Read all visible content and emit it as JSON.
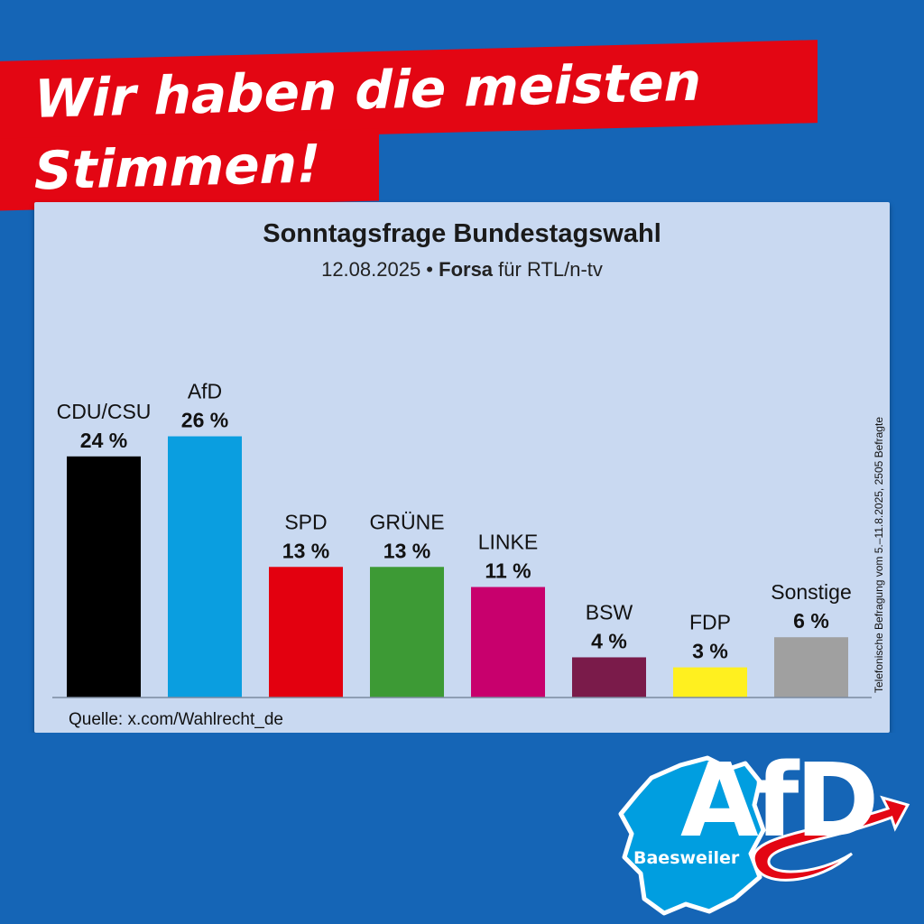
{
  "headline": {
    "line1": "Wir haben die meisten",
    "line2": "Stimmen!"
  },
  "chart_data": {
    "type": "bar",
    "title": "Sonntagsfrage Bundestagswahl",
    "subtitle_date": "12.08.2025 •",
    "subtitle_institute": "Forsa",
    "subtitle_client": "für RTL/n-tv",
    "categories": [
      "CDU/CSU",
      "AfD",
      "SPD",
      "GRÜNE",
      "LINKE",
      "BSW",
      "FDP",
      "Sonstige"
    ],
    "values": [
      24,
      26,
      13,
      13,
      11,
      4,
      3,
      6
    ],
    "value_labels": [
      "24 %",
      "26 %",
      "13 %",
      "13 %",
      "11 %",
      "4 %",
      "3 %",
      "6 %"
    ],
    "colors": [
      "#000000",
      "#0a9ee0",
      "#e3000f",
      "#3d9a35",
      "#c8006d",
      "#7a1b4a",
      "#fff01f",
      "#a0a0a0"
    ],
    "unit": "%",
    "ylim": [
      0,
      30
    ],
    "grid": false,
    "legend": "none",
    "source": "Quelle: x.com/Wahlrecht_de",
    "side_note": "Telefonische Befragung vom 5.–11.8.2025, 2505 Befragte"
  },
  "logo": {
    "text": "AfD",
    "city": "Baesweiler",
    "colors": {
      "blue": "#009ee0",
      "red": "#e30613",
      "white": "#ffffff"
    }
  }
}
